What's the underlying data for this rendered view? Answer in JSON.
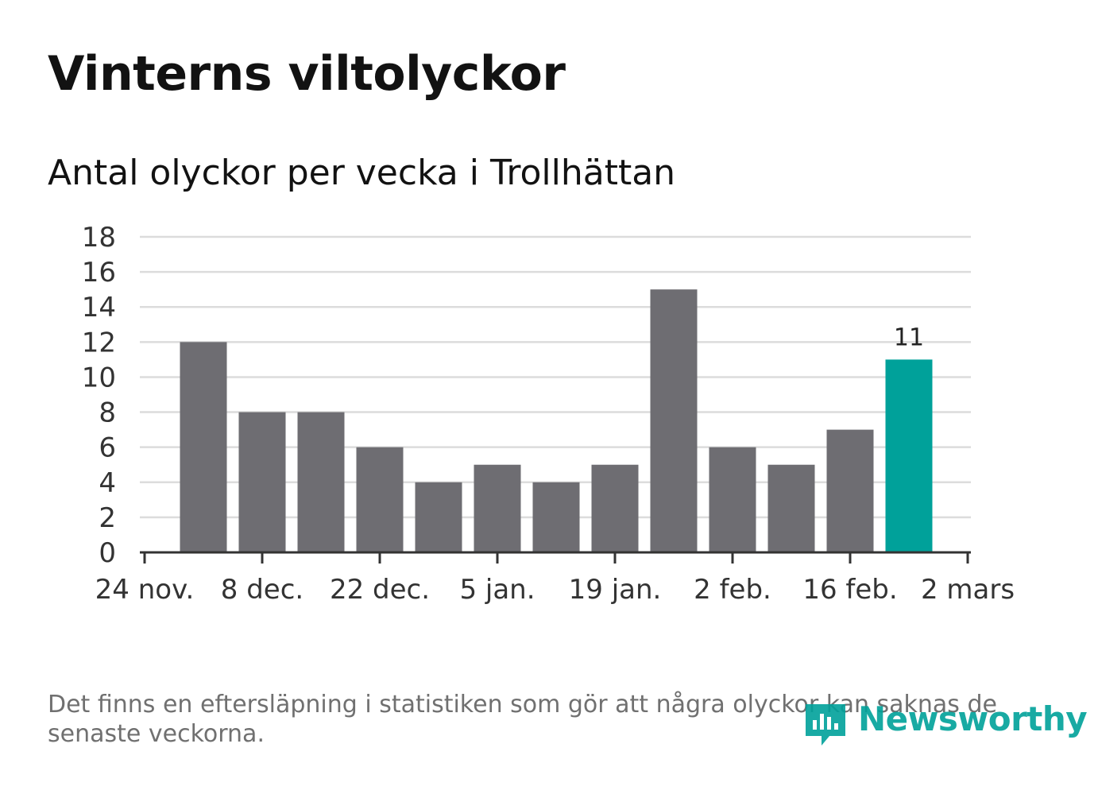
{
  "header": {
    "title": "Vinterns viltolyckor",
    "subtitle": "Antal olyckor per vecka i Trollhättan"
  },
  "footer": {
    "note": "Det finns en eftersläpning i statistiken som gör att några olyckor kan saknas de senaste veckorna.",
    "brand": "Newsworthy"
  },
  "colors": {
    "bar": "#6e6d72",
    "highlight": "#00a19a",
    "grid": "#dcdcdc",
    "axis": "#333333"
  },
  "chart_data": {
    "type": "bar",
    "title": "Vinterns viltolyckor",
    "subtitle": "Antal olyckor per vecka i Trollhättan",
    "xlabel": "",
    "ylabel": "",
    "ylim": [
      0,
      18
    ],
    "yticks": [
      0,
      2,
      4,
      6,
      8,
      10,
      12,
      14,
      16,
      18
    ],
    "x_ticks": [
      "24 nov.",
      "8 dec.",
      "22 dec.",
      "5 jan.",
      "19 jan.",
      "2 feb.",
      "16 feb.",
      "2 mars"
    ],
    "weeks_per_tick": 2,
    "values": [
      12,
      8,
      8,
      6,
      4,
      5,
      4,
      5,
      15,
      6,
      5,
      7,
      11
    ],
    "highlight_index": 12,
    "data_labels": [
      {
        "index": 12,
        "text": "11"
      }
    ],
    "grid": true,
    "legend": "none"
  }
}
